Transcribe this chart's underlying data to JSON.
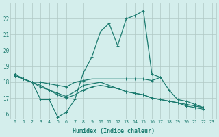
{
  "xlabel": "Humidex (Indice chaleur)",
  "x": [
    0,
    1,
    2,
    3,
    4,
    5,
    6,
    7,
    8,
    9,
    10,
    11,
    12,
    13,
    14,
    15,
    16,
    17,
    18,
    19,
    20,
    21,
    22,
    23
  ],
  "line1": [
    18.5,
    18.2,
    18.0,
    16.9,
    16.9,
    15.8,
    16.1,
    16.9,
    18.6,
    19.6,
    21.2,
    21.7,
    20.3,
    22.0,
    22.2,
    22.5,
    18.5,
    18.3,
    null,
    null,
    null,
    null,
    null,
    null
  ],
  "line2": [
    18.4,
    18.2,
    18.0,
    18.0,
    17.9,
    17.8,
    17.7,
    18.0,
    18.1,
    18.2,
    18.2,
    18.2,
    18.2,
    18.2,
    18.2,
    18.2,
    18.1,
    18.3,
    17.5,
    16.9,
    16.8,
    16.6,
    16.4,
    null
  ],
  "line3": [
    18.4,
    18.2,
    18.0,
    17.8,
    17.5,
    17.3,
    17.1,
    17.4,
    17.8,
    17.9,
    18.0,
    17.8,
    17.6,
    17.4,
    17.3,
    17.2,
    17.0,
    16.9,
    16.8,
    16.7,
    16.6,
    16.5,
    16.4,
    null
  ],
  "line4": [
    18.4,
    18.2,
    18.0,
    17.7,
    17.5,
    17.2,
    17.0,
    17.2,
    17.5,
    17.7,
    17.8,
    17.7,
    17.6,
    17.4,
    17.3,
    17.2,
    17.0,
    16.9,
    16.8,
    16.7,
    16.5,
    16.4,
    16.3,
    null
  ],
  "line_color": "#1a7a6e",
  "bg_color": "#d4eeec",
  "grid_color": "#b0c8c4",
  "ylim": [
    15.7,
    23.0
  ],
  "xlim": [
    -0.5,
    23.5
  ]
}
